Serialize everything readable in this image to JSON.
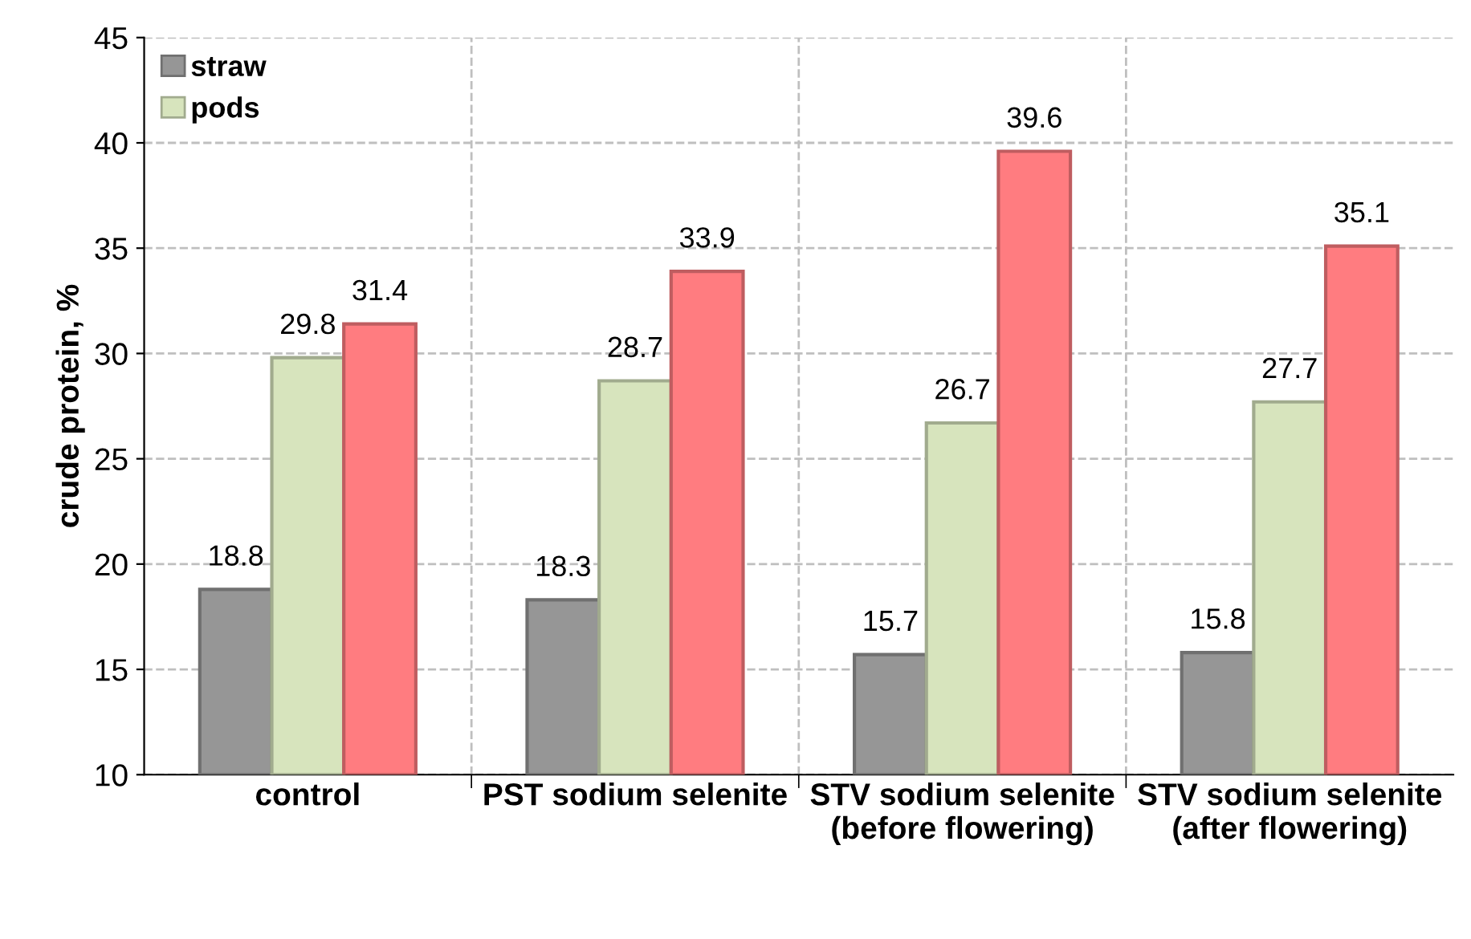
{
  "chart_data": {
    "type": "bar",
    "ylabel": "crude protein, %",
    "categories": [
      "control",
      "PST sodium selenite",
      "STV sodium selenite (before flowering)",
      "STV sodium selenite (after flowering)"
    ],
    "series": [
      {
        "name": "straw",
        "color": "#969696",
        "values": [
          18.8,
          18.3,
          15.7,
          15.8
        ]
      },
      {
        "name": "pods",
        "color": "#d7e4bd",
        "values": [
          29.8,
          28.7,
          26.7,
          27.7
        ]
      },
      {
        "color": "#ff7c80",
        "values": [
          31.4,
          33.9,
          39.6,
          35.1
        ]
      }
    ],
    "ylim": [
      10,
      45
    ],
    "yticks": [
      10,
      15,
      20,
      25,
      30,
      35,
      40,
      45
    ],
    "grid": true,
    "legend": "top left",
    "data_labels": true
  }
}
